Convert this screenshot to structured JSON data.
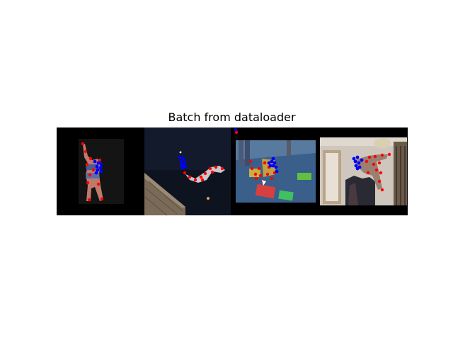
{
  "figure": {
    "title": "Batch from dataloader"
  },
  "colors": {
    "background": "#ffffff",
    "grid_background": "#000000",
    "keypoint_a": "#ff0000",
    "keypoint_b": "#0000ff"
  },
  "batch": [
    {
      "scene": "person-standing-arm-raised",
      "keypoints_red": 11,
      "keypoints_blue": 8
    },
    {
      "scene": "person-diving-night-sky",
      "keypoints_red": 10,
      "keypoints_blue": 7
    },
    {
      "scene": "people-on-mat-floor",
      "keypoints_red": 12,
      "keypoints_blue": 8
    },
    {
      "scene": "person-kicking-indoor-hallway",
      "keypoints_red": 12,
      "keypoints_blue": 8
    }
  ]
}
